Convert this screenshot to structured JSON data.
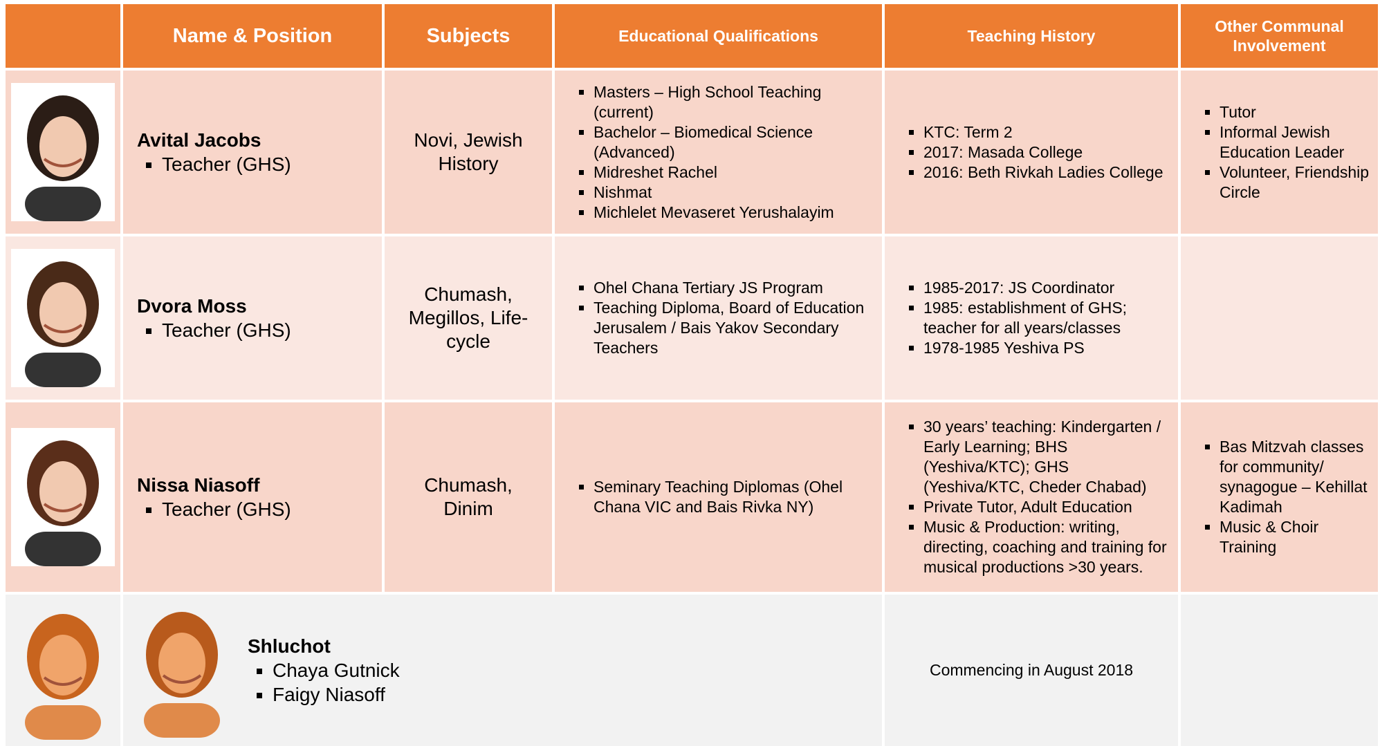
{
  "columns": [
    "Name & Position",
    "Subjects",
    "Educational Qualifications",
    "Teaching History",
    "Other Communal Involvement"
  ],
  "rows": [
    {
      "name": "Avital Jacobs",
      "position": "Teacher (GHS)",
      "subjects": "Novi, Jewish History",
      "qualifications": [
        "Masters – High School Teaching (current)",
        "Bachelor – Biomedical Science (Advanced)",
        "Midreshet Rachel",
        "Nishmat",
        "Michlelet Mevaseret Yerushalayim"
      ],
      "history": [
        "KTC: Term 2",
        "2017: Masada College",
        "2016: Beth Rivkah Ladies College"
      ],
      "communal": [
        "Tutor",
        "Informal Jewish Education Leader",
        "Volunteer, Friendship Circle"
      ]
    },
    {
      "name": "Dvora Moss",
      "position": "Teacher (GHS)",
      "subjects": "Chumash, Megillos, Life-cycle",
      "qualifications": [
        "Ohel Chana Tertiary JS Program",
        "Teaching Diploma, Board of Education Jerusalem / Bais Yakov Secondary Teachers"
      ],
      "history": [
        "1985-2017: JS Coordinator",
        "1985: establishment of GHS; teacher for all years/classes",
        "1978-1985 Yeshiva PS"
      ],
      "communal": []
    },
    {
      "name": "Nissa Niasoff",
      "position": "Teacher (GHS)",
      "subjects": "Chumash, Dinim",
      "qualifications": [
        "Seminary Teaching Diplomas (Ohel Chana VIC and Bais Rivka NY)"
      ],
      "history": [
        "30 years’ teaching: Kindergarten / Early Learning; BHS (Yeshiva/KTC); GHS (Yeshiva/KTC, Cheder Chabad)",
        "Private Tutor, Adult Education",
        "Music & Production: writing, directing, coaching and training for musical productions >30 years."
      ],
      "communal": [
        "Bas Mitzvah classes for community/ synagogue – Kehillat Kadimah",
        "Music & Choir Training"
      ]
    }
  ],
  "shluchot": {
    "title": "Shluchot",
    "members": [
      "Chaya Gutnick",
      "Faigy Niasoff"
    ],
    "note": "Commencing in August 2018"
  }
}
